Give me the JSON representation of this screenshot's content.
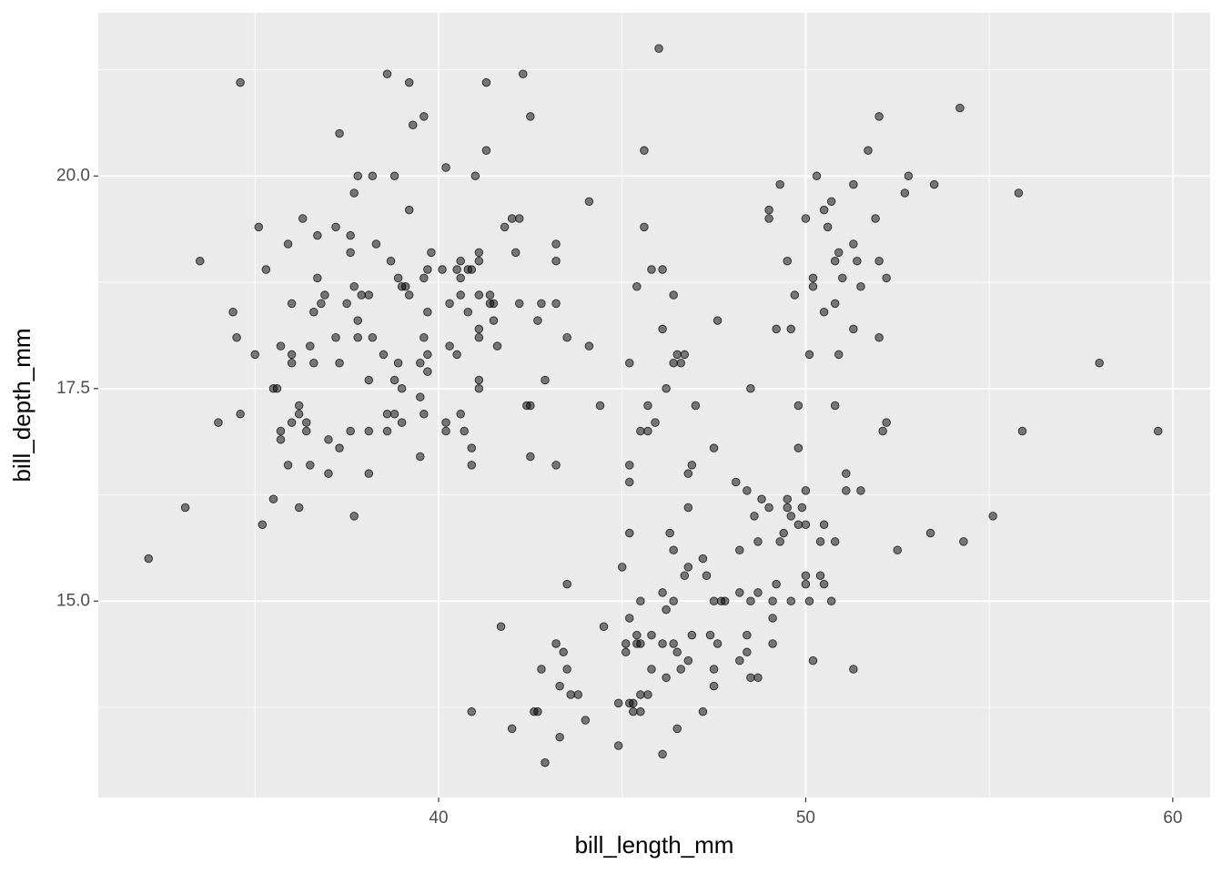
{
  "chart_data": {
    "type": "scatter",
    "x_label": "bill_length_mm",
    "y_label": "bill_depth_mm",
    "color": "#000000",
    "alpha": 0.5,
    "grid": true,
    "xlim": [
      30.73,
      61.02
    ],
    "ylim": [
      12.69,
      21.92
    ],
    "xticks": [
      40,
      50,
      60
    ],
    "yticks": [
      {
        "value": 15,
        "label": "15.0"
      },
      17.5,
      {
        "value": 20,
        "label": "20.0"
      }
    ],
    "x": [
      32.1,
      33.1,
      33.5,
      34.0,
      34.4,
      34.5,
      34.6,
      34.6,
      35.0,
      35.1,
      35.2,
      35.3,
      35.5,
      35.5,
      35.6,
      35.7,
      35.7,
      35.7,
      35.9,
      35.9,
      36.0,
      36.0,
      36.0,
      36.0,
      36.2,
      36.2,
      36.2,
      36.3,
      36.4,
      36.4,
      36.5,
      36.5,
      36.6,
      36.6,
      36.7,
      36.7,
      36.8,
      36.9,
      37.0,
      37.0,
      37.2,
      37.2,
      37.3,
      37.3,
      37.3,
      37.5,
      37.6,
      37.6,
      37.6,
      37.7,
      37.7,
      37.7,
      37.8,
      37.8,
      37.8,
      37.9,
      38.1,
      38.1,
      38.1,
      38.1,
      38.2,
      38.2,
      38.3,
      38.5,
      38.6,
      38.6,
      38.6,
      38.7,
      38.8,
      38.8,
      38.8,
      38.9,
      38.9,
      39.0,
      39.0,
      39.0,
      39.1,
      39.2,
      39.2,
      39.2,
      39.3,
      39.5,
      39.5,
      39.5,
      39.6,
      39.6,
      39.6,
      39.6,
      39.7,
      39.7,
      39.7,
      39.7,
      39.8,
      40.1,
      40.2,
      40.2,
      40.2,
      40.3,
      40.3,
      40.5,
      40.5,
      40.6,
      40.6,
      40.6,
      40.6,
      40.7,
      40.8,
      40.8,
      40.9,
      40.9,
      40.9,
      40.9,
      41.0,
      41.1,
      41.1,
      41.1,
      41.1,
      41.1,
      41.1,
      41.1,
      41.3,
      41.3,
      41.4,
      41.4,
      41.5,
      41.5,
      41.6,
      41.7,
      41.8,
      42.0,
      42.0,
      42.1,
      42.2,
      42.2,
      42.3,
      42.4,
      42.5,
      42.5,
      42.5,
      42.6,
      42.7,
      42.7,
      42.8,
      42.8,
      42.9,
      42.9,
      43.2,
      43.2,
      43.2,
      43.2,
      43.2,
      43.3,
      43.3,
      43.4,
      43.5,
      43.5,
      43.5,
      43.6,
      43.8,
      44.0,
      44.1,
      44.1,
      44.4,
      44.5,
      44.9,
      44.9,
      45.0,
      45.1,
      45.1,
      45.2,
      45.2,
      45.2,
      45.2,
      45.2,
      45.2,
      45.3,
      45.3,
      45.4,
      45.4,
      45.4,
      45.5,
      45.5,
      45.5,
      45.5,
      45.5,
      45.6,
      45.6,
      45.7,
      45.7,
      45.7,
      45.8,
      45.8,
      45.8,
      45.9,
      46.0,
      46.1,
      46.1,
      46.1,
      46.1,
      46.1,
      46.2,
      46.2,
      46.2,
      46.3,
      46.4,
      46.4,
      46.4,
      46.4,
      46.4,
      46.5,
      46.5,
      46.5,
      46.6,
      46.6,
      46.7,
      46.7,
      46.8,
      46.8,
      46.8,
      46.8,
      46.9,
      46.9,
      47.0,
      47.2,
      47.2,
      47.3,
      47.4,
      47.5,
      47.5,
      47.5,
      47.5,
      47.6,
      47.6,
      47.7,
      47.8,
      48.1,
      48.2,
      48.2,
      48.2,
      48.4,
      48.4,
      48.4,
      48.5,
      48.5,
      48.5,
      48.6,
      48.7,
      48.7,
      48.7,
      48.8,
      49.0,
      49.0,
      49.0,
      49.1,
      49.1,
      49.1,
      49.2,
      49.2,
      49.3,
      49.3,
      49.4,
      49.5,
      49.5,
      49.5,
      49.6,
      49.6,
      49.6,
      49.7,
      49.8,
      49.8,
      49.8,
      49.9,
      50.0,
      50.0,
      50.0,
      50.0,
      50.0,
      50.1,
      50.1,
      50.2,
      50.2,
      50.2,
      50.3,
      50.4,
      50.4,
      50.5,
      50.5,
      50.5,
      50.5,
      50.6,
      50.7,
      50.7,
      50.8,
      50.8,
      50.8,
      50.8,
      50.9,
      50.9,
      51.0,
      51.1,
      51.1,
      51.3,
      51.3,
      51.3,
      51.3,
      51.4,
      51.5,
      51.5,
      51.7,
      51.9,
      52.0,
      52.0,
      52.0,
      52.1,
      52.2,
      52.2,
      52.5,
      52.7,
      52.8,
      53.4,
      53.5,
      54.2,
      54.3,
      55.1,
      55.8,
      55.9,
      58.0,
      59.6
    ],
    "y": [
      15.5,
      16.1,
      19.0,
      17.1,
      18.4,
      18.1,
      21.1,
      17.2,
      17.9,
      19.4,
      15.9,
      18.9,
      16.2,
      17.5,
      17.5,
      17.0,
      18.0,
      16.9,
      19.2,
      16.6,
      18.5,
      17.8,
      17.9,
      17.1,
      17.2,
      17.3,
      16.1,
      19.5,
      17.1,
      17.0,
      18.0,
      16.6,
      18.4,
      17.8,
      19.3,
      18.8,
      18.5,
      18.6,
      16.9,
      16.5,
      19.4,
      18.1,
      20.5,
      17.8,
      16.8,
      18.5,
      17.0,
      19.3,
      19.1,
      16.0,
      19.8,
      18.7,
      20.0,
      18.3,
      18.1,
      18.6,
      18.6,
      17.6,
      17.0,
      16.5,
      20.0,
      18.1,
      19.2,
      17.9,
      21.2,
      17.2,
      17.0,
      19.0,
      20.0,
      17.6,
      17.2,
      18.8,
      17.8,
      18.7,
      17.5,
      17.1,
      18.7,
      21.1,
      19.6,
      18.6,
      20.6,
      17.4,
      17.8,
      16.7,
      20.7,
      18.1,
      17.2,
      18.8,
      17.7,
      18.9,
      18.4,
      17.9,
      19.1,
      18.9,
      20.1,
      17.1,
      17.0,
      18.0,
      18.5,
      17.9,
      18.9,
      19.0,
      17.2,
      18.8,
      18.6,
      17.0,
      18.9,
      18.4,
      16.8,
      16.6,
      18.9,
      13.7,
      20.0,
      19.1,
      19.0,
      18.6,
      18.2,
      18.1,
      17.6,
      17.5,
      21.1,
      20.3,
      18.6,
      18.5,
      18.5,
      18.3,
      18.0,
      14.7,
      19.4,
      19.5,
      13.5,
      19.1,
      19.5,
      18.5,
      21.2,
      17.3,
      17.3,
      20.7,
      16.7,
      13.7,
      13.7,
      18.3,
      18.5,
      14.2,
      17.6,
      13.1,
      19.2,
      19.0,
      18.5,
      16.6,
      14.5,
      13.4,
      14.0,
      14.4,
      18.1,
      15.2,
      14.2,
      13.9,
      13.9,
      13.6,
      19.7,
      18.0,
      17.3,
      14.7,
      13.3,
      13.8,
      15.4,
      14.5,
      14.4,
      17.8,
      16.6,
      16.4,
      15.8,
      14.8,
      13.8,
      13.7,
      13.8,
      14.5,
      14.6,
      18.7,
      15.0,
      17.0,
      14.5,
      13.9,
      13.7,
      19.4,
      20.3,
      17.3,
      17.0,
      13.9,
      18.9,
      14.6,
      14.2,
      17.1,
      21.5,
      18.9,
      15.1,
      14.5,
      13.2,
      18.2,
      17.5,
      14.9,
      14.1,
      15.8,
      15.6,
      18.6,
      17.8,
      15.0,
      14.5,
      17.9,
      14.4,
      13.5,
      17.8,
      14.2,
      17.9,
      15.3,
      16.5,
      15.4,
      16.1,
      14.3,
      16.6,
      14.6,
      17.3,
      15.5,
      13.7,
      15.3,
      14.6,
      16.8,
      15.0,
      14.2,
      14.0,
      18.3,
      14.5,
      15.0,
      15.0,
      16.4,
      15.1,
      15.6,
      14.3,
      16.3,
      14.6,
      14.4,
      17.5,
      15.0,
      14.1,
      16.0,
      15.7,
      15.1,
      14.1,
      16.2,
      19.6,
      19.5,
      16.1,
      15.0,
      14.8,
      14.5,
      18.2,
      15.2,
      19.9,
      15.7,
      15.8,
      19.0,
      16.2,
      16.1,
      18.2,
      16.0,
      15.0,
      18.6,
      17.3,
      16.8,
      15.9,
      16.1,
      19.5,
      16.3,
      15.9,
      15.3,
      15.2,
      17.9,
      15.0,
      18.8,
      18.7,
      14.3,
      20.0,
      15.7,
      15.3,
      19.6,
      18.4,
      15.9,
      15.2,
      19.4,
      19.7,
      15.0,
      19.0,
      18.5,
      17.3,
      15.7,
      19.1,
      17.9,
      18.8,
      16.5,
      16.3,
      19.9,
      19.2,
      18.2,
      14.2,
      19.0,
      18.7,
      16.3,
      20.3,
      19.5,
      20.7,
      19.0,
      18.1,
      17.0,
      18.8,
      17.1,
      15.6,
      19.8,
      20.0,
      15.8,
      19.9,
      20.8,
      15.7,
      16.0,
      19.8,
      17.0,
      17.8,
      17.0
    ]
  }
}
